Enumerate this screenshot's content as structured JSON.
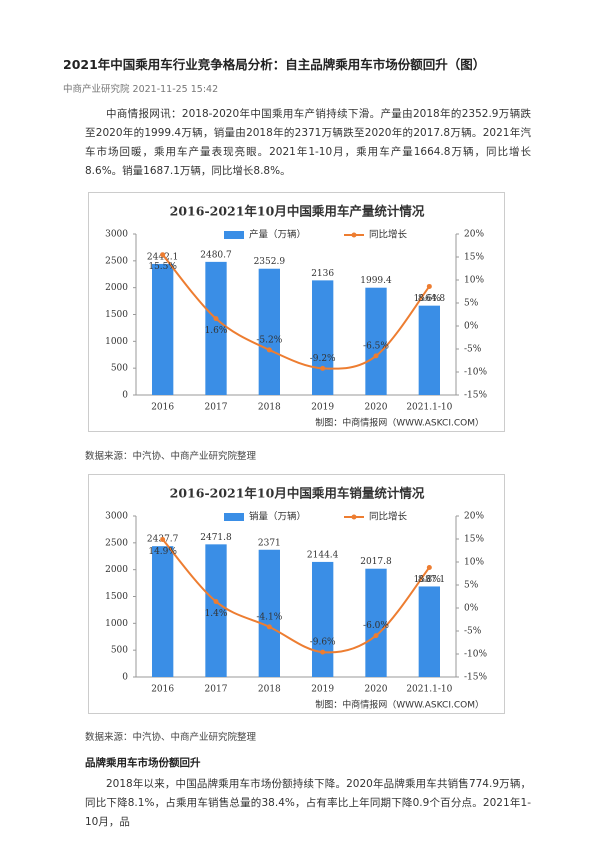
{
  "header": {
    "title": "2021年中国乘用车行业竞争格局分析：自主品牌乘用车市场份额回升（图）",
    "meta": "中商产业研究院 2021-11-25 15:42"
  },
  "paragraphs": [
    "中商情报网讯：2018-2020年中国乘用车产销持续下滑。产量由2018年的2352.9万辆跌至2020年的1999.4万辆，销量由2018年的2371万辆跌至2020年的2017.8万辆。2021年汽车市场回暖，乘用车产量表现亮眼。2021年1-10月，乘用车产量1664.8万辆，同比增长8.6%。销量1687.1万辆，同比增长8.8%。",
    "2018年以来，中国品牌乘用车市场份额持续下降。2020年品牌乘用车共销售774.9万辆，同比下降8.1%，占乘用车销售总量的38.4%，占有率比上年同期下降0.9个百分点。2021年1-10月，品"
  ],
  "captions": [
    "数据来源：中汽协、中商产业研究院整理",
    "数据来源：中汽协、中商产业研究院整理"
  ],
  "section_heading": "品牌乘用车市场份额回升",
  "chart_data": [
    {
      "type": "bar",
      "title": "2016-2021年10月中国乘用车产量统计情况",
      "source": "制图：中商情报网（WWW.ASKCI.COM）",
      "categories": [
        "2016",
        "2017",
        "2018",
        "2019",
        "2020",
        "2021.1-10"
      ],
      "series": [
        {
          "name": "产量（万辆）",
          "color": "#3a8ee6",
          "values": [
            2442.1,
            2480.7,
            2352.9,
            2136,
            1999.4,
            1664.8
          ]
        },
        {
          "name": "同比增长",
          "color": "#ed7d31",
          "axis": "y2",
          "values": [
            15.5,
            1.6,
            -5.2,
            -9.2,
            -6.5,
            8.6
          ],
          "value_labels": [
            "15.5%",
            "1.6%",
            "-5.2%",
            "-9.2%",
            "-6.5%",
            "8.6%"
          ]
        }
      ],
      "ylim": [
        0,
        3000
      ],
      "yticks": [
        0,
        500,
        1000,
        1500,
        2000,
        2500,
        3000
      ],
      "y2lim": [
        -15,
        20
      ],
      "y2ticks": [
        {
          "value": -15,
          "label": "-15%"
        },
        {
          "value": -10,
          "label": "-10%"
        },
        {
          "value": -5,
          "label": "-5%"
        },
        {
          "value": 0,
          "label": "0%"
        },
        {
          "value": 5,
          "label": "5%"
        },
        {
          "value": 10,
          "label": "10%"
        },
        {
          "value": 15,
          "label": "15%"
        },
        {
          "value": 20,
          "label": "20%"
        }
      ]
    },
    {
      "type": "bar",
      "title": "2016-2021年10月中国乘用车销量统计情况",
      "source": "制图：中商情报网（WWW.ASKCI.COM）",
      "categories": [
        "2016",
        "2017",
        "2018",
        "2019",
        "2020",
        "2021.1-10"
      ],
      "series": [
        {
          "name": "销量（万辆）",
          "color": "#3a8ee6",
          "values": [
            2437.7,
            2471.8,
            2371,
            2144.4,
            2017.8,
            1687.1
          ]
        },
        {
          "name": "同比增长",
          "color": "#ed7d31",
          "axis": "y2",
          "values": [
            14.9,
            1.4,
            -4.1,
            -9.6,
            -6,
            8.8
          ],
          "value_labels": [
            "14.9%",
            "1.4%",
            "-4.1%",
            "-9.6%",
            "-6.0%",
            "8.8%"
          ]
        }
      ],
      "ylim": [
        0,
        3000
      ],
      "yticks": [
        0,
        500,
        1000,
        1500,
        2000,
        2500,
        3000
      ],
      "y2lim": [
        -15,
        20
      ],
      "y2ticks": [
        {
          "value": -15,
          "label": "-15%"
        },
        {
          "value": -10,
          "label": "-10%"
        },
        {
          "value": -5,
          "label": "-5%"
        },
        {
          "value": 0,
          "label": "0%"
        },
        {
          "value": 5,
          "label": "5%"
        },
        {
          "value": 10,
          "label": "10%"
        },
        {
          "value": 15,
          "label": "15%"
        },
        {
          "value": 20,
          "label": "20%"
        }
      ]
    }
  ]
}
